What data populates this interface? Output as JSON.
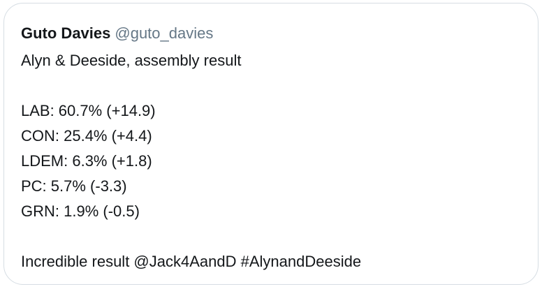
{
  "tweet": {
    "author_name": "Guto Davies",
    "author_handle": "@guto_davies",
    "headline": "Alyn & Deeside, assembly result",
    "results": [
      "LAB: 60.7% (+14.9)",
      "CON: 25.4% (+4.4)",
      "LDEM: 6.3% (+1.8)",
      "PC: 5.7% (-3.3)",
      "GRN: 1.9% (-0.5)"
    ],
    "closing": "Incredible result @Jack4AandD #AlynandDeeside"
  }
}
